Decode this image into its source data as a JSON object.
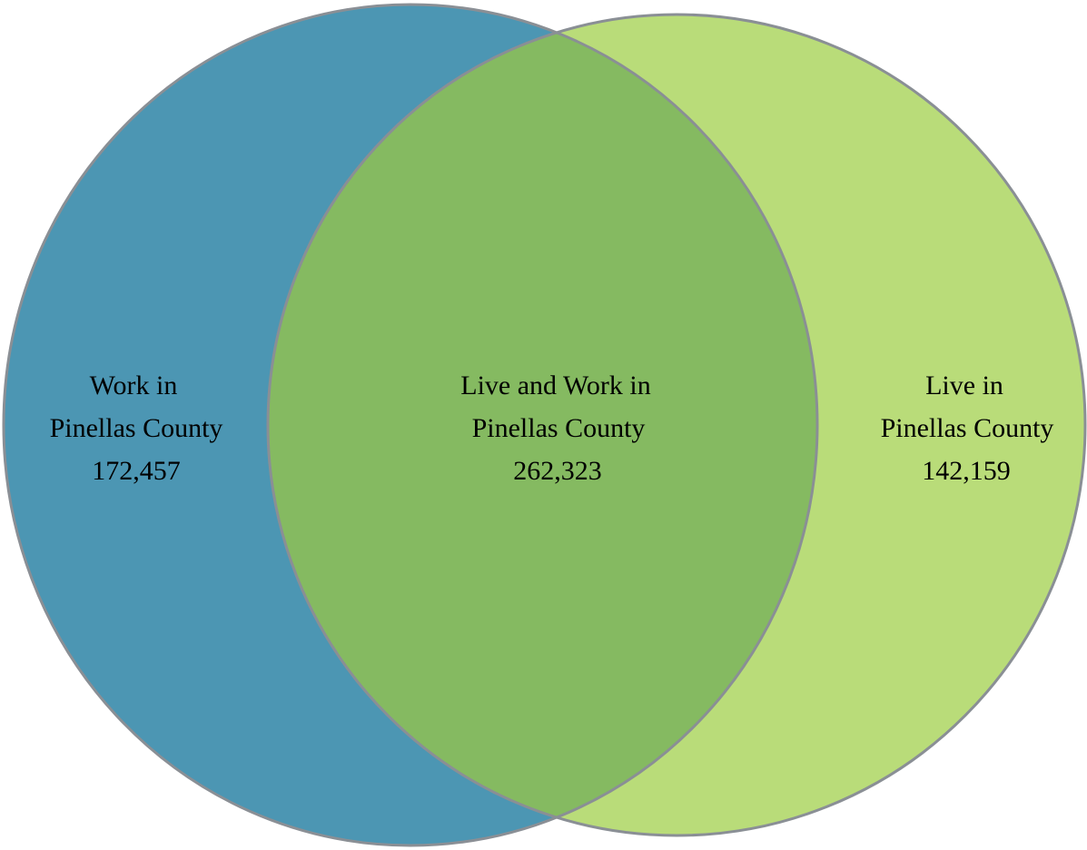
{
  "diagram": {
    "type": "venn",
    "colors": {
      "left_fill": "#4c96b3",
      "right_fill": "#b9dc79",
      "overlap_fill": "#85ba61",
      "outline": "#8a8f95"
    },
    "left": {
      "line1": "Work in",
      "line2": "Pinellas County",
      "value": "172,457"
    },
    "center": {
      "line1": "Live and Work in",
      "line2": "Pinellas County",
      "value": "262,323"
    },
    "right": {
      "line1": "Live in",
      "line2": "Pinellas County",
      "value": "142,159"
    }
  }
}
